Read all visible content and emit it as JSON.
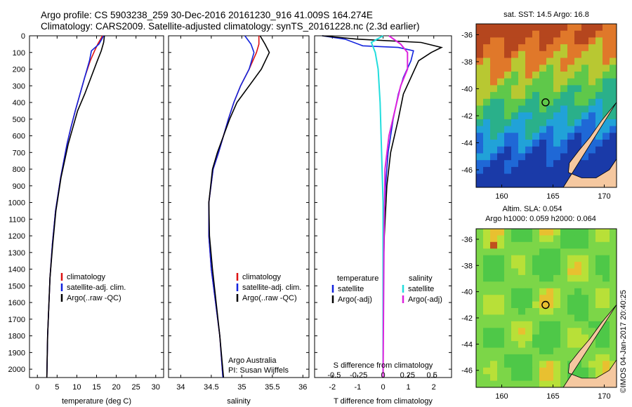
{
  "header": {
    "line1": "Argo profile: CS 5903238_259 30-Dec-2016 20161230_916 41.009S 164.274E",
    "line2": "Climatology: CARS2009. Satellite-adjusted climatology: synTS_20161228.nc (2.3d earlier)"
  },
  "side_note": "©IMOS 04-Jan-2017 20:40:25",
  "credit": {
    "line1": "Argo Australia",
    "line2": "PI: Susan Wijffels"
  },
  "colors": {
    "climatology": "#dd1111",
    "satellite": "#1122dd",
    "argo": "#000000",
    "satellite_s": "#22dddd",
    "argo_s": "#dd22dd",
    "land": "#f5c8a0"
  },
  "chart_data": [
    {
      "type": "line",
      "xlabel": "temperature (deg C)",
      "ylim": [
        2050,
        0
      ],
      "xlim": [
        -2,
        32
      ],
      "xticks": [
        0,
        5,
        10,
        15,
        20,
        25,
        30
      ],
      "yticks": [
        0,
        100,
        200,
        300,
        400,
        500,
        600,
        700,
        800,
        900,
        1000,
        1100,
        1200,
        1300,
        1400,
        1500,
        1600,
        1700,
        1800,
        1900,
        2000
      ],
      "legend": [
        "climatology",
        "satellite-adj. clim.",
        "Argo(..raw -QC)"
      ],
      "series": [
        {
          "name": "climatology",
          "x": [
            16.5,
            15.3,
            14.5,
            13.4,
            12.0,
            10.8,
            9.6,
            8.5,
            7.5,
            5.9,
            4.6,
            3.8,
            3.2,
            2.6,
            2.4
          ],
          "y": [
            0,
            50,
            90,
            150,
            250,
            350,
            450,
            550,
            650,
            850,
            1050,
            1250,
            1450,
            1800,
            2050
          ]
        },
        {
          "name": "satellite-adj. clim.",
          "x": [
            16.8,
            15.6,
            13.7,
            13.2,
            12.0,
            10.8,
            9.6,
            8.5,
            7.5,
            5.9,
            4.6,
            3.8,
            3.2,
            2.6,
            2.4
          ],
          "y": [
            0,
            50,
            90,
            150,
            250,
            350,
            450,
            550,
            650,
            850,
            1050,
            1250,
            1450,
            1800,
            2050
          ]
        },
        {
          "name": "Argo(..raw -QC)",
          "x": [
            17.0,
            16.8,
            16.2,
            15.2,
            13.6,
            12.0,
            10.2,
            9.0,
            7.8,
            6.0,
            4.7,
            3.9,
            3.2,
            2.6,
            2.4
          ],
          "y": [
            0,
            40,
            90,
            150,
            250,
            350,
            450,
            550,
            650,
            850,
            1050,
            1250,
            1450,
            1800,
            2050
          ]
        }
      ]
    },
    {
      "type": "line",
      "xlabel": "salinity",
      "ylim": [
        2050,
        0
      ],
      "xlim": [
        33.8,
        36.1
      ],
      "xticks": [
        34,
        34.5,
        35,
        35.5,
        36
      ],
      "legend": [
        "climatology",
        "satellite-adj. clim.",
        "Argo(..raw -QC)"
      ],
      "series": [
        {
          "name": "climatology",
          "x": [
            35.28,
            35.28,
            35.24,
            35.12,
            34.98,
            34.87,
            34.78,
            34.7,
            34.62,
            34.53,
            34.46,
            34.46,
            34.5,
            34.57,
            34.64,
            34.69
          ],
          "y": [
            0,
            50,
            100,
            200,
            300,
            400,
            500,
            600,
            700,
            800,
            1000,
            1200,
            1400,
            1600,
            1800,
            2050
          ]
        },
        {
          "name": "satellite-adj. clim.",
          "x": [
            35.05,
            35.15,
            35.2,
            35.12,
            34.98,
            34.87,
            34.78,
            34.7,
            34.62,
            34.53,
            34.46,
            34.46,
            34.5,
            34.57,
            34.64,
            34.69
          ],
          "y": [
            0,
            50,
            100,
            200,
            300,
            400,
            500,
            600,
            700,
            800,
            1000,
            1200,
            1400,
            1600,
            1800,
            2050
          ]
        },
        {
          "name": "Argo(..raw -QC)",
          "x": [
            35.3,
            35.38,
            35.45,
            35.32,
            35.12,
            34.92,
            34.8,
            34.7,
            34.6,
            34.52,
            34.46,
            34.47,
            34.52,
            34.58,
            34.64,
            34.7
          ],
          "y": [
            0,
            50,
            100,
            200,
            300,
            400,
            500,
            600,
            700,
            800,
            1000,
            1200,
            1400,
            1600,
            1800,
            2050
          ]
        }
      ]
    },
    {
      "type": "line",
      "xlabel": "T difference from climatology",
      "top_label": "S difference from climatology",
      "ylim": [
        2050,
        0
      ],
      "xlim": [
        -2.7,
        2.7
      ],
      "xticks": [
        -2,
        -1,
        0,
        1,
        2
      ],
      "s_ticks": [
        -0.5,
        -0.25,
        0,
        0.25,
        0.5
      ],
      "legend_headers": [
        "temperature",
        "salinity"
      ],
      "legend": [
        "satellite",
        "Argo(-adj)",
        "satellite",
        "Argo(-adj)"
      ],
      "series": [
        {
          "name": "satellite",
          "x": [
            -2.4,
            -1.5,
            -0.8,
            0.6,
            1.2,
            1.1,
            0.8,
            0.6,
            0.4,
            0.2,
            0.1,
            0,
            0,
            0
          ],
          "y": [
            0,
            20,
            60,
            70,
            90,
            150,
            250,
            350,
            500,
            700,
            900,
            1200,
            1500,
            2050
          ]
        },
        {
          "name": "Argo(-adj)",
          "x": [
            -2.4,
            -1.0,
            1.5,
            2.3,
            1.9,
            1.4,
            1.1,
            0.8,
            0.6,
            0.3,
            0.15,
            0.05,
            0,
            0
          ],
          "y": [
            0,
            20,
            40,
            70,
            100,
            150,
            250,
            350,
            500,
            700,
            900,
            1200,
            1500,
            2050
          ]
        },
        {
          "name": "satellite",
          "x": [
            0,
            -0.12,
            -0.08,
            -0.05,
            -0.03,
            -0.02,
            -0.01,
            0,
            0,
            0
          ],
          "y": [
            0,
            40,
            100,
            200,
            400,
            600,
            800,
            1000,
            1500,
            2050
          ]
        },
        {
          "name": "Argo(-adj)",
          "x": [
            0.06,
            0.18,
            0.25,
            0.25,
            0.18,
            0.12,
            0.06,
            0.02,
            0.01,
            0
          ],
          "y": [
            0,
            50,
            100,
            200,
            300,
            450,
            600,
            800,
            1200,
            2050
          ]
        }
      ]
    },
    {
      "type": "heatmap",
      "title": "sat. SST: 14.5  Argo: 16.8",
      "xticks": [
        160,
        165,
        170
      ],
      "yticks": [
        -36,
        -38,
        -40,
        -42,
        -44,
        -46
      ],
      "xlim": [
        157.5,
        171.2
      ],
      "ylim": [
        -47.3,
        -35.2
      ],
      "marker": {
        "lon": 164.274,
        "lat": -41.009
      }
    },
    {
      "type": "heatmap",
      "title": "Altim. SLA: 0.054",
      "subtitle": "Argo h1000: 0.059 h2000: 0.064",
      "xticks": [
        160,
        165,
        170
      ],
      "yticks": [
        -36,
        -38,
        -40,
        -42,
        -44,
        -46
      ],
      "xlim": [
        157.5,
        171.2
      ],
      "ylim": [
        -47.3,
        -35.2
      ],
      "marker": {
        "lon": 164.274,
        "lat": -41.009
      }
    }
  ]
}
